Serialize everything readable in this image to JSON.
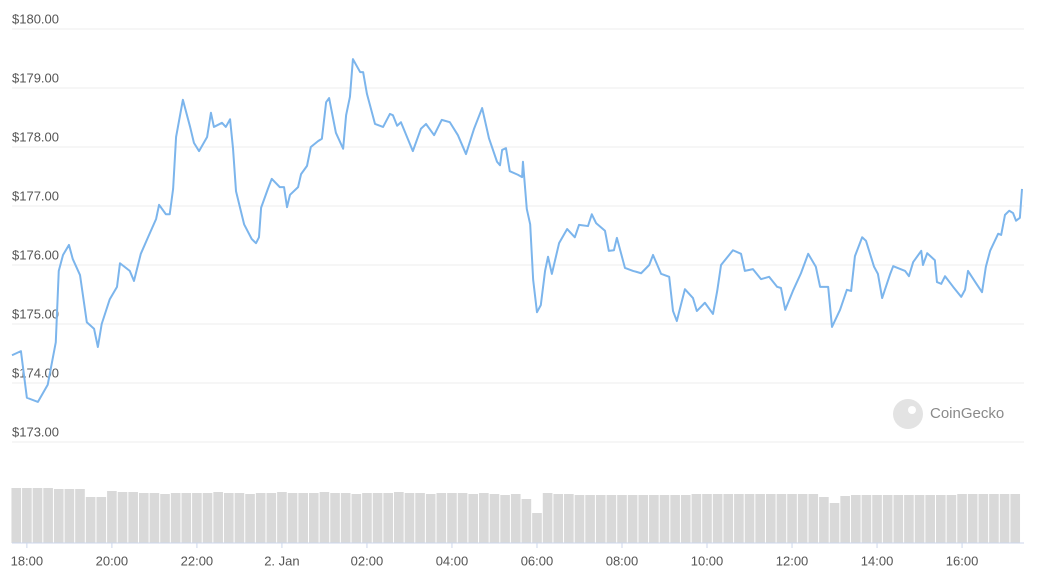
{
  "chart_data": {
    "type": "line",
    "series": [
      {
        "name": "Price",
        "color": "#7cb5ec",
        "x": [
          17.65,
          17.86,
          18.0,
          18.26,
          18.49,
          18.68,
          18.75,
          18.85,
          18.99,
          19.08,
          19.25,
          19.41,
          19.58,
          19.67,
          19.76,
          19.95,
          20.12,
          20.19,
          20.42,
          20.52,
          20.68,
          20.85,
          21.04,
          21.11,
          21.27,
          21.36,
          21.44,
          21.51,
          21.67,
          21.84,
          21.93,
          22.05,
          22.24,
          22.33,
          22.4,
          22.59,
          22.68,
          22.78,
          22.85,
          22.92,
          23.11,
          23.29,
          23.39,
          23.46,
          23.51,
          23.67,
          23.76,
          23.95,
          24.05,
          24.12,
          24.19,
          24.38,
          24.45,
          24.59,
          24.68,
          24.85,
          24.94,
          25.04,
          25.11,
          25.27,
          25.44,
          25.51,
          25.6,
          25.67,
          25.84,
          25.91,
          26.0,
          26.19,
          26.38,
          26.54,
          26.61,
          26.71,
          26.8,
          26.96,
          27.08,
          27.27,
          27.39,
          27.58,
          27.76,
          27.95,
          28.14,
          28.33,
          28.52,
          28.71,
          28.87,
          29.06,
          29.13,
          29.18,
          29.27,
          29.36,
          29.55,
          29.65,
          29.67,
          29.76,
          29.84,
          29.91,
          30.0,
          30.09,
          30.19,
          30.26,
          30.35,
          30.52,
          30.71,
          30.89,
          30.99,
          31.2,
          31.29,
          31.39,
          31.6,
          31.69,
          31.81,
          31.88,
          32.07,
          32.26,
          32.45,
          32.64,
          32.73,
          32.92,
          33.11,
          33.2,
          33.29,
          33.48,
          33.67,
          33.76,
          33.95,
          34.14,
          34.24,
          34.33,
          34.52,
          34.61,
          34.8,
          34.89,
          35.08,
          35.27,
          35.46,
          35.65,
          35.74,
          35.84,
          36.02,
          36.21,
          36.38,
          36.56,
          36.66,
          36.85,
          36.94,
          37.13,
          37.29,
          37.39,
          37.48,
          37.65,
          37.74,
          37.93,
          38.02,
          38.12,
          38.31,
          38.38,
          38.66,
          38.75,
          38.85,
          39.04,
          39.08,
          39.18,
          39.36,
          39.41,
          39.51,
          39.6,
          39.79,
          39.98,
          40.07,
          40.14,
          40.33,
          40.47,
          40.56,
          40.66,
          40.85,
          40.92,
          41.01,
          41.11,
          41.2,
          41.27,
          41.36,
          41.41
        ],
        "values": [
          174.47,
          174.54,
          173.75,
          173.68,
          173.97,
          174.69,
          175.9,
          176.17,
          176.34,
          176.1,
          175.83,
          175.03,
          174.92,
          174.61,
          175.0,
          175.42,
          175.63,
          176.03,
          175.9,
          175.73,
          176.19,
          176.47,
          176.78,
          177.02,
          176.86,
          176.86,
          177.29,
          178.17,
          178.8,
          178.34,
          178.07,
          177.93,
          178.17,
          178.58,
          178.34,
          178.41,
          178.34,
          178.47,
          177.97,
          177.25,
          176.69,
          176.44,
          176.37,
          176.47,
          176.97,
          177.29,
          177.46,
          177.32,
          177.32,
          176.98,
          177.19,
          177.32,
          177.54,
          177.68,
          178.0,
          178.1,
          178.14,
          178.76,
          178.83,
          178.24,
          177.97,
          178.54,
          178.85,
          179.49,
          179.27,
          179.27,
          178.9,
          178.39,
          178.34,
          178.56,
          178.54,
          178.36,
          178.42,
          178.14,
          177.93,
          178.31,
          178.39,
          178.2,
          178.46,
          178.42,
          178.2,
          177.88,
          178.31,
          178.66,
          178.15,
          177.75,
          177.69,
          177.95,
          177.98,
          177.59,
          177.53,
          177.49,
          177.75,
          176.95,
          176.69,
          175.75,
          175.2,
          175.32,
          175.9,
          176.14,
          175.85,
          176.37,
          176.61,
          176.47,
          176.68,
          176.66,
          176.86,
          176.71,
          176.58,
          176.24,
          176.25,
          176.46,
          175.95,
          175.9,
          175.86,
          176.0,
          176.17,
          175.85,
          175.8,
          175.22,
          175.05,
          175.59,
          175.44,
          175.22,
          175.36,
          175.17,
          175.56,
          176.0,
          176.17,
          176.25,
          176.19,
          175.9,
          175.93,
          175.76,
          175.8,
          175.63,
          175.61,
          175.24,
          175.56,
          175.86,
          176.19,
          175.97,
          175.63,
          175.63,
          174.95,
          175.24,
          175.58,
          175.56,
          176.15,
          176.47,
          176.41,
          175.97,
          175.85,
          175.44,
          175.85,
          175.98,
          175.9,
          175.81,
          176.05,
          176.24,
          176.0,
          176.2,
          176.08,
          175.71,
          175.68,
          175.81,
          175.63,
          175.46,
          175.58,
          175.9,
          175.69,
          175.54,
          175.97,
          176.24,
          176.53,
          176.51,
          176.85,
          176.92,
          176.88,
          176.75,
          176.8,
          177.29
        ]
      }
    ],
    "volume": {
      "color": "#d9d9d9",
      "ylim": [
        0,
        60
      ],
      "x": [
        17.75,
        18.0,
        18.25,
        18.5,
        18.75,
        19.0,
        19.25,
        19.5,
        19.75,
        20.0,
        20.25,
        20.5,
        20.75,
        21.0,
        21.25,
        21.5,
        21.75,
        22.0,
        22.25,
        22.5,
        22.75,
        23.0,
        23.25,
        23.5,
        23.75,
        24.0,
        24.25,
        24.5,
        24.75,
        25.0,
        25.25,
        25.5,
        25.75,
        26.0,
        26.25,
        26.5,
        26.75,
        27.0,
        27.25,
        27.5,
        27.75,
        28.0,
        28.25,
        28.5,
        28.75,
        29.0,
        29.25,
        29.5,
        29.75,
        30.0,
        30.25,
        30.5,
        30.75,
        31.0,
        31.25,
        31.5,
        31.75,
        32.0,
        32.25,
        32.5,
        32.75,
        33.0,
        33.25,
        33.5,
        33.75,
        34.0,
        34.25,
        34.5,
        34.75,
        35.0,
        35.25,
        35.5,
        35.75,
        36.0,
        36.25,
        36.5,
        36.75,
        37.0,
        37.25,
        37.5,
        37.75,
        38.0,
        38.25,
        38.5,
        38.75,
        39.0,
        39.25,
        39.5,
        39.75,
        40.0,
        40.25,
        40.5,
        40.75,
        41.0,
        41.25
      ],
      "values": [
        55,
        55,
        55,
        55,
        54,
        54,
        54,
        46,
        46,
        52,
        51,
        51,
        50,
        50,
        49,
        50,
        50,
        50,
        50,
        51,
        50,
        50,
        49,
        50,
        50,
        51,
        50,
        50,
        50,
        51,
        50,
        50,
        49,
        50,
        50,
        50,
        51,
        50,
        50,
        49,
        50,
        50,
        50,
        49,
        50,
        49,
        48,
        49,
        44,
        30,
        50,
        49,
        49,
        48,
        48,
        48,
        48,
        48,
        48,
        48,
        48,
        48,
        48,
        48,
        49,
        49,
        49,
        49,
        49,
        49,
        49,
        49,
        49,
        49,
        49,
        49,
        46,
        40,
        47,
        48,
        48,
        48,
        48,
        48,
        48,
        48,
        48,
        48,
        48,
        49,
        49,
        49,
        49,
        49,
        49
      ]
    },
    "xlim": [
      17.65,
      41.41
    ],
    "xticks": [
      {
        "value": 18,
        "label": "18:00"
      },
      {
        "value": 20,
        "label": "20:00"
      },
      {
        "value": 22,
        "label": "22:00"
      },
      {
        "value": 24,
        "label": "2. Jan"
      },
      {
        "value": 26,
        "label": "02:00"
      },
      {
        "value": 28,
        "label": "04:00"
      },
      {
        "value": 30,
        "label": "06:00"
      },
      {
        "value": 32,
        "label": "08:00"
      },
      {
        "value": 34,
        "label": "10:00"
      },
      {
        "value": 36,
        "label": "12:00"
      },
      {
        "value": 38,
        "label": "14:00"
      },
      {
        "value": 40,
        "label": "16:00"
      }
    ],
    "ylim": [
      173,
      180
    ],
    "yticks": [
      {
        "value": 180,
        "label": "$180.00"
      },
      {
        "value": 179,
        "label": "$179.00"
      },
      {
        "value": 178,
        "label": "$178.00"
      },
      {
        "value": 177,
        "label": "$177.00"
      },
      {
        "value": 176,
        "label": "$176.00"
      },
      {
        "value": 175,
        "label": "$175.00"
      },
      {
        "value": 174,
        "label": "$174.00"
      },
      {
        "value": 173,
        "label": "$173.00"
      }
    ],
    "grid": true,
    "watermark": "CoinGecko"
  }
}
